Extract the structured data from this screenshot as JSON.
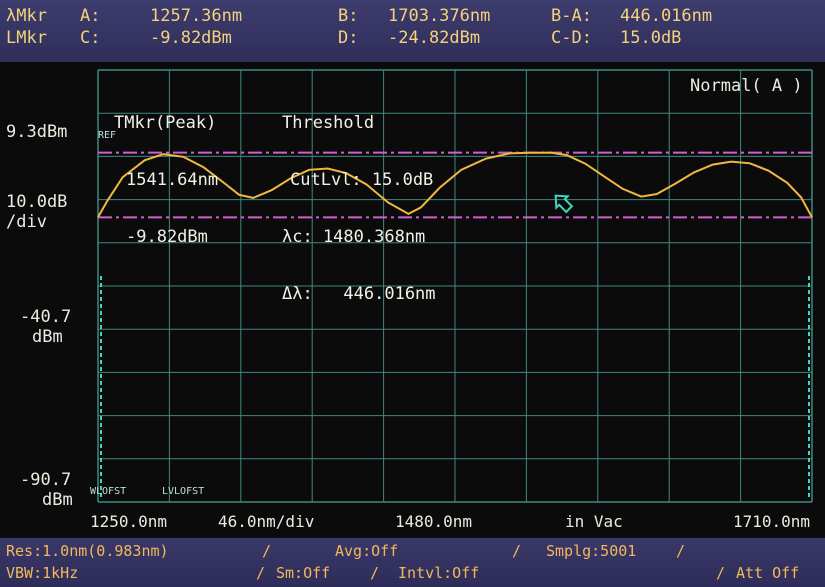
{
  "markers": {
    "lambda_label": "λMkr",
    "l_label": "LMkr",
    "a_key": "A:",
    "a_val": "1257.36nm",
    "b_key": "B:",
    "b_val": "1703.376nm",
    "ba_key": "B-A:",
    "ba_val": "446.016nm",
    "c_key": "C:",
    "c_val": "-9.82dBm",
    "d_key": "D:",
    "d_val": "-24.82dBm",
    "cd_key": "C-D:",
    "cd_val": "15.0dB"
  },
  "tmkr": {
    "title": "TMkr(Peak)",
    "wavelength": "1541.64nm",
    "level": "-9.82dBm"
  },
  "threshold": {
    "title": "Threshold",
    "cutlvl": "CutLvl: 15.0dB",
    "lc": "λc: 1480.368nm",
    "dl": "Δλ:   446.016nm"
  },
  "mode": "Normal( A )",
  "yaxis": {
    "ref_level": "9.3dBm",
    "ref_tag": "REF",
    "scale": "10.0dB",
    "scale_unit": "/div",
    "mid_val": "-40.7",
    "mid_unit": "dBm",
    "bottom_val": "-90.7",
    "bottom_unit": "dBm"
  },
  "offsets": {
    "wl_ofst": "WLOFST",
    "lvl_ofst": "LVLOFST"
  },
  "xaxis": {
    "start": "1250.0nm",
    "per_div": "46.0nm/div",
    "center": "1480.0nm",
    "medium": "in Vac",
    "stop": "1710.0nm"
  },
  "status": {
    "res": "Res:1.0nm(0.983nm)",
    "avg": "Avg:Off",
    "smplg": "Smplg:5001",
    "vbw": "VBW:1kHz",
    "sm": "Sm:Off",
    "intvl": "Intvl:Off",
    "att": "Att Off"
  },
  "colors": {
    "trace": "#f0b840",
    "threshold_lines": "#d060d0",
    "grid": "#3e8a80",
    "marker_arrow": "#3fd6c4"
  }
}
